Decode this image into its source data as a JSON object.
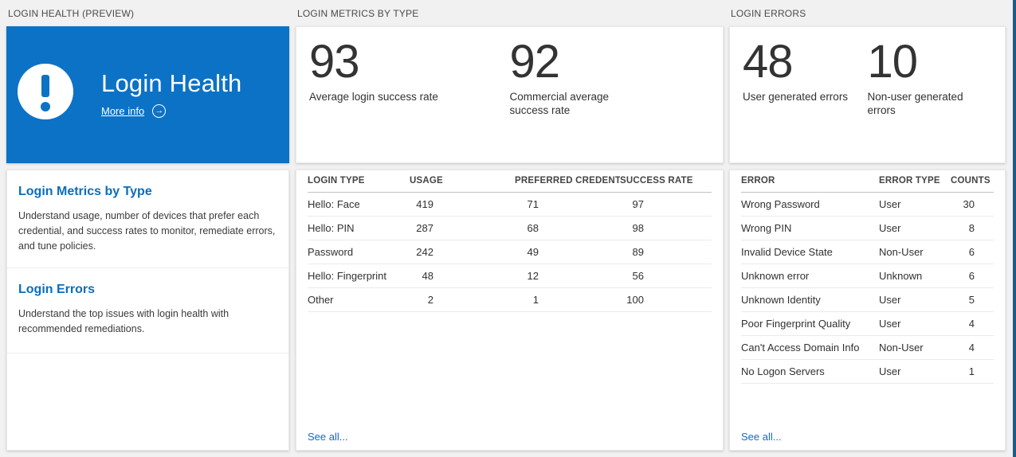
{
  "colors": {
    "tile_blue": "#0c72c6",
    "accent_blue": "#0b6dbd",
    "link_blue": "#1269c9",
    "edge_strip_blue": "#1d5c87",
    "background": "#f1f1f1"
  },
  "icons": {
    "arrow_right": "→"
  },
  "health": {
    "header": "LOGIN HEALTH (PREVIEW)",
    "tile": {
      "title": "Login Health",
      "more_info_label": "More info"
    },
    "items": [
      {
        "title": "Login Metrics by Type",
        "description": "Understand usage, number of devices that prefer each credential, and success rates to monitor, remediate errors, and tune policies."
      },
      {
        "title": "Login Errors",
        "description": "Understand the top issues with login health with recommended remediations."
      }
    ]
  },
  "metrics": {
    "header": "LOGIN METRICS BY TYPE",
    "kpis": [
      {
        "value": "93",
        "label": "Average login success rate"
      },
      {
        "value": "92",
        "label": "Commercial average success rate"
      }
    ],
    "table": {
      "columns": [
        "LOGIN TYPE",
        "USAGE",
        "PREFERRED CREDENTIAL",
        "SUCCESS RATE"
      ],
      "rows": [
        [
          "Hello: Face",
          "419",
          "71",
          "97"
        ],
        [
          "Hello: PIN",
          "287",
          "68",
          "98"
        ],
        [
          "Password",
          "242",
          "49",
          "89"
        ],
        [
          "Hello: Fingerprint",
          "48",
          "12",
          "56"
        ],
        [
          "Other",
          "2",
          "1",
          "100"
        ]
      ]
    },
    "see_all": "See all..."
  },
  "errors": {
    "header": "LOGIN ERRORS",
    "kpis": [
      {
        "value": "48",
        "label": "User generated errors"
      },
      {
        "value": "10",
        "label": "Non-user generated errors"
      }
    ],
    "table": {
      "columns": [
        "ERROR",
        "ERROR TYPE",
        "COUNTS"
      ],
      "rows": [
        [
          "Wrong Password",
          "User",
          "30"
        ],
        [
          "Wrong PIN",
          "User",
          "8"
        ],
        [
          "Invalid Device State",
          "Non-User",
          "6"
        ],
        [
          "Unknown error",
          "Unknown",
          "6"
        ],
        [
          "Unknown Identity",
          "User",
          "5"
        ],
        [
          "Poor Fingerprint Quality",
          "User",
          "4"
        ],
        [
          "Can't Access Domain Info",
          "Non-User",
          "4"
        ],
        [
          "No Logon Servers",
          "User",
          "1"
        ]
      ]
    },
    "see_all": "See all..."
  }
}
